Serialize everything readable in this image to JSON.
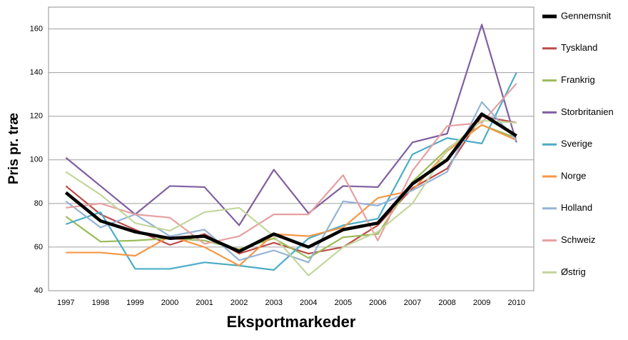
{
  "chart_data": {
    "type": "line",
    "x_label": "Eksportmarkeder",
    "y_label": "Pris pr. træ",
    "categories": [
      "1997",
      "1998",
      "1999",
      "2000",
      "2001",
      "2002",
      "2003",
      "2004",
      "2005",
      "2006",
      "2007",
      "2008",
      "2009",
      "2010"
    ],
    "ylim": [
      40,
      170
    ],
    "yticks": [
      40,
      60,
      80,
      100,
      120,
      140,
      160
    ],
    "grid": true,
    "legend": "right",
    "series": [
      {
        "name": "Gennemsnit",
        "color": "#000000",
        "values": [
          85,
          72,
          67,
          64,
          65,
          58,
          66,
          60,
          68,
          71,
          89,
          100,
          121,
          111
        ]
      },
      {
        "name": "Tyskland",
        "color": "#be4b48",
        "values": [
          88,
          75,
          68,
          61,
          66,
          57,
          62,
          57,
          60,
          70,
          87,
          96,
          120,
          117
        ]
      },
      {
        "name": "Frankrig",
        "color": "#9bbb59",
        "values": [
          74,
          62.5,
          63,
          64,
          63,
          59,
          64,
          55,
          64.5,
          66,
          90,
          105,
          116,
          110
        ]
      },
      {
        "name": "Storbritanien",
        "color": "#7f5fa0",
        "values": [
          101,
          88,
          75,
          88,
          87.5,
          70,
          95.5,
          75.5,
          88,
          87.5,
          108,
          112,
          162,
          108
        ]
      },
      {
        "name": "Sverige",
        "color": "#4bacc6",
        "values": [
          70.5,
          76,
          50,
          50,
          53,
          51.5,
          49.5,
          64,
          70,
          73,
          102.5,
          110,
          107.5,
          140
        ]
      },
      {
        "name": "Norge",
        "color": "#f79646",
        "values": [
          57.5,
          57.5,
          56,
          65,
          60,
          51.5,
          66,
          65,
          69,
          82.5,
          86,
          104,
          116,
          109
        ]
      },
      {
        "name": "Holland",
        "color": "#95b3d7",
        "values": [
          81,
          69,
          75,
          65,
          68,
          54,
          58.5,
          53,
          81,
          79,
          86,
          94.5,
          126.5,
          109
        ]
      },
      {
        "name": "Schweiz",
        "color": "#e6a0a0",
        "values": [
          78,
          80,
          75,
          73.5,
          61.5,
          65,
          75,
          75,
          93,
          63,
          95,
          115.5,
          117,
          135
        ]
      },
      {
        "name": "Østrig",
        "color": "#c3d69b",
        "values": [
          94.5,
          84,
          71,
          67.5,
          76,
          78,
          65,
          47,
          60,
          67,
          80,
          104.5,
          118,
          117
        ]
      }
    ]
  }
}
